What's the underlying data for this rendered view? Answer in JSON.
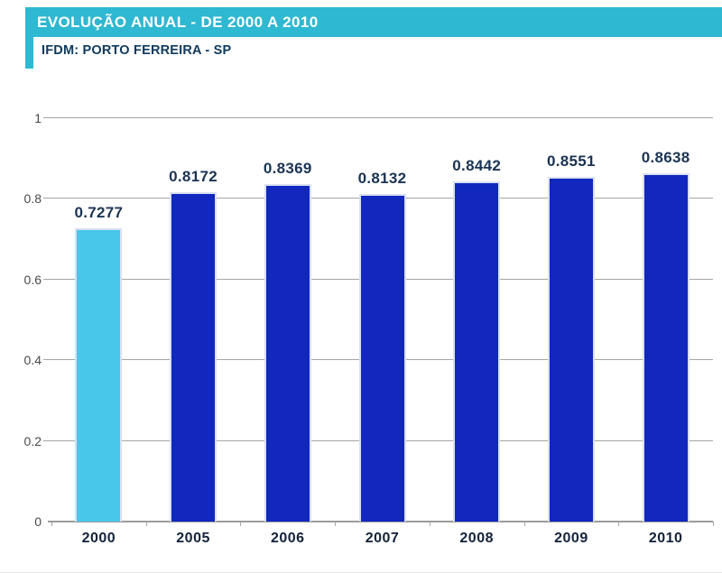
{
  "header": {
    "title": "EVOLUÇÃO ANUAL - DE 2000 A 2010",
    "subtitle": "IFDM: PORTO FERREIRA - SP",
    "band_color": "#2fb8d2"
  },
  "chart_data": {
    "type": "bar",
    "title": "EVOLUÇÃO ANUAL - DE 2000 A 2010",
    "subtitle": "IFDM: PORTO FERREIRA - SP",
    "categories": [
      "2000",
      "2005",
      "2006",
      "2007",
      "2008",
      "2009",
      "2010"
    ],
    "values": [
      0.7277,
      0.8172,
      0.8369,
      0.8132,
      0.8442,
      0.8551,
      0.8638
    ],
    "value_labels": [
      "0.7277",
      "0.8172",
      "0.8369",
      "0.8132",
      "0.8442",
      "0.8551",
      "0.8638"
    ],
    "bar_colors": [
      "#49c7ea",
      "#1127be",
      "#1127be",
      "#1127be",
      "#1127be",
      "#1127be",
      "#1127be"
    ],
    "highlight_color": "#49c7ea",
    "default_color": "#1127be",
    "xlabel": "",
    "ylabel": "",
    "ylim": [
      0,
      1
    ],
    "yticks": [
      0,
      0.2,
      0.4,
      0.6,
      0.8,
      1
    ],
    "ytick_labels": [
      "0",
      "0.2",
      "0.4",
      "0.6",
      "0.8",
      "1"
    ],
    "grid": true,
    "legend": false,
    "gridline_color": "#a6a6a6"
  }
}
